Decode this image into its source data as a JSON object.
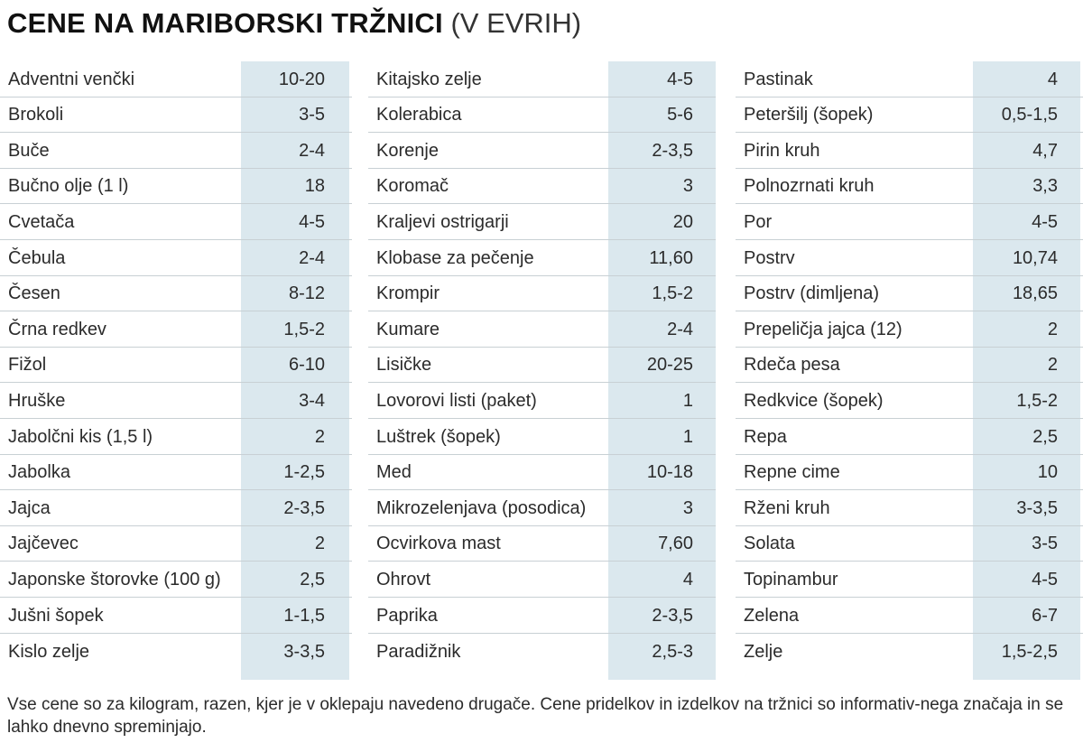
{
  "title": {
    "bold": "CENE NA MARIBORSKI TRŽNICI",
    "light": "(V EVRIH)"
  },
  "columns": [
    {
      "rows": [
        {
          "name": "Adventni venčki",
          "price": "10-20"
        },
        {
          "name": "Brokoli",
          "price": "3-5"
        },
        {
          "name": "Buče",
          "price": "2-4"
        },
        {
          "name": "Bučno olje (1 l)",
          "price": "18"
        },
        {
          "name": "Cvetača",
          "price": "4-5"
        },
        {
          "name": "Čebula",
          "price": "2-4"
        },
        {
          "name": "Česen",
          "price": "8-12"
        },
        {
          "name": "Črna redkev",
          "price": "1,5-2"
        },
        {
          "name": "Fižol",
          "price": "6-10"
        },
        {
          "name": "Hruške",
          "price": "3-4"
        },
        {
          "name": "Jabolčni kis (1,5 l)",
          "price": "2"
        },
        {
          "name": "Jabolka",
          "price": "1-2,5"
        },
        {
          "name": "Jajca",
          "price": "2-3,5"
        },
        {
          "name": "Jajčevec",
          "price": "2"
        },
        {
          "name": "Japonske štorovke (100 g)",
          "price": "2,5"
        },
        {
          "name": "Jušni šopek",
          "price": "1-1,5"
        },
        {
          "name": "Kislo zelje",
          "price": "3-3,5"
        }
      ]
    },
    {
      "rows": [
        {
          "name": "Kitajsko zelje",
          "price": "4-5"
        },
        {
          "name": "Kolerabica",
          "price": "5-6"
        },
        {
          "name": "Korenje",
          "price": "2-3,5"
        },
        {
          "name": "Koromač",
          "price": "3"
        },
        {
          "name": "Kraljevi ostrigarji",
          "price": "20"
        },
        {
          "name": "Klobase za pečenje",
          "price": "11,60"
        },
        {
          "name": "Krompir",
          "price": "1,5-2"
        },
        {
          "name": "Kumare",
          "price": "2-4"
        },
        {
          "name": "Lisičke",
          "price": "20-25"
        },
        {
          "name": "Lovorovi listi (paket)",
          "price": "1"
        },
        {
          "name": "Luštrek (šopek)",
          "price": "1"
        },
        {
          "name": "Med",
          "price": "10-18"
        },
        {
          "name": "Mikrozelenjava (posodica)",
          "price": "3"
        },
        {
          "name": "Ocvirkova mast",
          "price": "7,60"
        },
        {
          "name": "Ohrovt",
          "price": "4"
        },
        {
          "name": "Paprika",
          "price": "2-3,5"
        },
        {
          "name": "Paradižnik",
          "price": "2,5-3"
        }
      ]
    },
    {
      "rows": [
        {
          "name": "Pastinak",
          "price": "4"
        },
        {
          "name": "Peteršilj (šopek)",
          "price": "0,5-1,5"
        },
        {
          "name": "Pirin kruh",
          "price": "4,7"
        },
        {
          "name": "Polnozrnati kruh",
          "price": "3,3"
        },
        {
          "name": "Por",
          "price": "4-5"
        },
        {
          "name": "Postrv",
          "price": "10,74"
        },
        {
          "name": "Postrv (dimljena)",
          "price": "18,65"
        },
        {
          "name": "Prepeličja jajca (12)",
          "price": "2"
        },
        {
          "name": "Rdeča pesa",
          "price": "2"
        },
        {
          "name": "Redkvice (šopek)",
          "price": "1,5-2"
        },
        {
          "name": "Repa",
          "price": "2,5"
        },
        {
          "name": "Repne cime",
          "price": "10"
        },
        {
          "name": "Rženi kruh",
          "price": "3-3,5"
        },
        {
          "name": "Solata",
          "price": "3-5"
        },
        {
          "name": "Topinambur",
          "price": "4-5"
        },
        {
          "name": "Zelena",
          "price": "6-7"
        },
        {
          "name": "Zelje",
          "price": "1,5-2,5"
        }
      ]
    }
  ],
  "footnote": "Vse cene so za kilogram, razen, kjer je v oklepaju navedeno drugače. Cene pridelkov in izdelkov na tržnici so informativ-nega značaja in se lahko dnevno spreminjajo.",
  "colors": {
    "price_column_bg": "#dbe8ee",
    "row_rule": "#c8d0d4"
  }
}
